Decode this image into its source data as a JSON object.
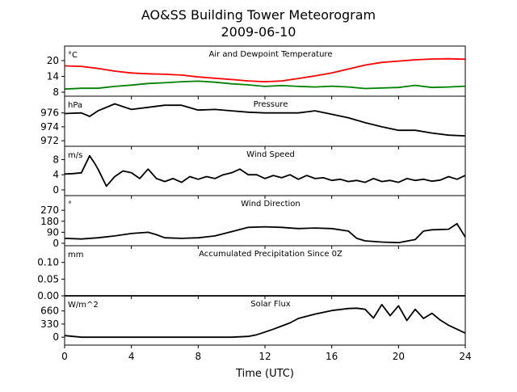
{
  "chart_data": {
    "type": "line",
    "title": "AO&SS Building Tower Meteorogram",
    "subtitle": "2009-06-10",
    "xlabel": "Time (UTC)",
    "xlim": [
      0,
      24
    ],
    "xticks": [
      0,
      4,
      8,
      12,
      16,
      20,
      24
    ],
    "grid": false,
    "panels": [
      {
        "title": "Air and Dewpoint Temperature",
        "unit": "°C",
        "ylim": [
          6.5,
          25.5
        ],
        "yticks": [
          8,
          14,
          20
        ],
        "series": [
          {
            "color": "#ff0000",
            "points": [
              [
                0,
                18
              ],
              [
                1,
                17.8
              ],
              [
                2,
                17
              ],
              [
                3,
                16
              ],
              [
                4,
                15.3
              ],
              [
                5,
                15
              ],
              [
                6,
                14.8
              ],
              [
                7,
                14.5
              ],
              [
                8,
                13.8
              ],
              [
                9,
                13.3
              ],
              [
                10,
                12.8
              ],
              [
                11,
                12.3
              ],
              [
                12,
                12
              ],
              [
                13,
                12.3
              ],
              [
                14,
                13.2
              ],
              [
                15,
                14.2
              ],
              [
                16,
                15.3
              ],
              [
                17,
                16.8
              ],
              [
                18,
                18.3
              ],
              [
                19,
                19.3
              ],
              [
                20,
                19.8
              ],
              [
                21,
                20.3
              ],
              [
                22,
                20.6
              ],
              [
                23,
                20.7
              ],
              [
                24,
                20.5
              ]
            ]
          },
          {
            "color": "#008000",
            "points": [
              [
                0,
                9.2
              ],
              [
                1,
                9.5
              ],
              [
                2,
                9.5
              ],
              [
                3,
                10.2
              ],
              [
                4,
                10.7
              ],
              [
                5,
                11.3
              ],
              [
                6,
                11.6
              ],
              [
                7,
                12
              ],
              [
                8,
                12.2
              ],
              [
                9,
                11.8
              ],
              [
                10,
                11.2
              ],
              [
                11,
                10.8
              ],
              [
                12,
                10.2
              ],
              [
                13,
                10.5
              ],
              [
                14,
                10.2
              ],
              [
                15,
                10
              ],
              [
                16,
                10.3
              ],
              [
                17,
                10
              ],
              [
                18,
                9.4
              ],
              [
                19,
                9.6
              ],
              [
                20,
                9.8
              ],
              [
                21,
                10.6
              ],
              [
                22,
                9.8
              ],
              [
                23,
                10
              ],
              [
                24,
                10.3
              ]
            ]
          }
        ]
      },
      {
        "title": "Pressure",
        "unit": "hPa",
        "ylim": [
          971.2,
          978.4
        ],
        "yticks": [
          972,
          974,
          976
        ],
        "series": [
          {
            "color": "#000000",
            "points": [
              [
                0,
                975.9
              ],
              [
                1,
                976
              ],
              [
                1.5,
                975.5
              ],
              [
                2,
                976.3
              ],
              [
                3,
                977.3
              ],
              [
                4,
                976.5
              ],
              [
                5,
                976.8
              ],
              [
                6,
                977.1
              ],
              [
                7,
                977.1
              ],
              [
                8,
                976.4
              ],
              [
                9,
                976.5
              ],
              [
                10,
                976.3
              ],
              [
                11,
                976.1
              ],
              [
                12,
                976
              ],
              [
                13,
                976
              ],
              [
                14,
                976
              ],
              [
                15,
                976.3
              ],
              [
                16,
                975.8
              ],
              [
                17,
                975.3
              ],
              [
                18,
                974.6
              ],
              [
                19,
                974
              ],
              [
                20,
                973.5
              ],
              [
                21,
                973.5
              ],
              [
                22,
                973.1
              ],
              [
                23,
                972.8
              ],
              [
                24,
                972.7
              ]
            ]
          }
        ]
      },
      {
        "title": "Wind Speed",
        "unit": "m/s",
        "ylim": [
          -1.5,
          11.5
        ],
        "yticks": [
          0,
          4,
          8
        ],
        "series": [
          {
            "color": "#000000",
            "points": [
              [
                0,
                4.2
              ],
              [
                0.5,
                4.3
              ],
              [
                1,
                4.5
              ],
              [
                1.5,
                9
              ],
              [
                1.8,
                7
              ],
              [
                2,
                5.5
              ],
              [
                2.5,
                1
              ],
              [
                3,
                3.5
              ],
              [
                3.5,
                5
              ],
              [
                4,
                4.5
              ],
              [
                4.5,
                3
              ],
              [
                5,
                5.5
              ],
              [
                5.5,
                3
              ],
              [
                6,
                2.2
              ],
              [
                6.5,
                3
              ],
              [
                7,
                2
              ],
              [
                7.5,
                3.5
              ],
              [
                8,
                2.8
              ],
              [
                8.5,
                3.5
              ],
              [
                9,
                3
              ],
              [
                9.5,
                4
              ],
              [
                10,
                4.5
              ],
              [
                10.5,
                5.5
              ],
              [
                11,
                4
              ],
              [
                11.5,
                4
              ],
              [
                12,
                3
              ],
              [
                12.5,
                3.8
              ],
              [
                13,
                3.2
              ],
              [
                13.5,
                4
              ],
              [
                14,
                2.8
              ],
              [
                14.5,
                3.8
              ],
              [
                15,
                3
              ],
              [
                15.5,
                3.2
              ],
              [
                16,
                2.5
              ],
              [
                16.5,
                2.8
              ],
              [
                17,
                2.2
              ],
              [
                17.5,
                2.5
              ],
              [
                18,
                2
              ],
              [
                18.5,
                3
              ],
              [
                19,
                2.2
              ],
              [
                19.5,
                2.5
              ],
              [
                20,
                2
              ],
              [
                20.5,
                3
              ],
              [
                21,
                2.5
              ],
              [
                21.5,
                2.8
              ],
              [
                22,
                2.3
              ],
              [
                22.5,
                2.6
              ],
              [
                23,
                3.5
              ],
              [
                23.5,
                2.8
              ],
              [
                24,
                3.8
              ]
            ]
          }
        ]
      },
      {
        "title": "Wind Direction",
        "unit": "°",
        "ylim": [
          -20,
          390
        ],
        "yticks": [
          0,
          90,
          180,
          270
        ],
        "series": [
          {
            "color": "#000000",
            "points": [
              [
                0,
                40
              ],
              [
                1,
                35
              ],
              [
                2,
                45
              ],
              [
                3,
                60
              ],
              [
                4,
                80
              ],
              [
                5,
                90
              ],
              [
                5.5,
                70
              ],
              [
                6,
                45
              ],
              [
                7,
                40
              ],
              [
                8,
                45
              ],
              [
                9,
                60
              ],
              [
                10,
                95
              ],
              [
                11,
                130
              ],
              [
                12,
                135
              ],
              [
                13,
                130
              ],
              [
                14,
                120
              ],
              [
                15,
                125
              ],
              [
                16,
                120
              ],
              [
                17,
                100
              ],
              [
                17.5,
                40
              ],
              [
                18,
                20
              ],
              [
                19,
                10
              ],
              [
                20,
                5
              ],
              [
                21,
                30
              ],
              [
                21.5,
                100
              ],
              [
                22,
                110
              ],
              [
                23,
                115
              ],
              [
                23.5,
                160
              ],
              [
                24,
                50
              ]
            ]
          }
        ]
      },
      {
        "title": "Accumulated Precipitation Since 0Z",
        "unit": "mm",
        "ylim": [
          0,
          0.15
        ],
        "yticks": [
          0.0,
          0.05,
          0.1
        ],
        "ytick_labels": [
          "0.00",
          "0.05",
          "0.10"
        ],
        "series": [
          {
            "color": "#000000",
            "points": [
              [
                0,
                0
              ],
              [
                24,
                0
              ]
            ]
          }
        ]
      },
      {
        "title": "Solar Flux",
        "unit": "W/m^2",
        "ylim": [
          -200,
          1040
        ],
        "yticks": [
          0,
          330,
          660
        ],
        "series": [
          {
            "color": "#000000",
            "points": [
              [
                0,
                40
              ],
              [
                1,
                0
              ],
              [
                2,
                0
              ],
              [
                4,
                0
              ],
              [
                6,
                0
              ],
              [
                8,
                0
              ],
              [
                10,
                0
              ],
              [
                11,
                20
              ],
              [
                11.5,
                60
              ],
              [
                12,
                130
              ],
              [
                12.5,
                200
              ],
              [
                13,
                280
              ],
              [
                13.5,
                360
              ],
              [
                14,
                470
              ],
              [
                15,
                580
              ],
              [
                16,
                670
              ],
              [
                17,
                720
              ],
              [
                17.5,
                730
              ],
              [
                18,
                700
              ],
              [
                18.5,
                480
              ],
              [
                19,
                820
              ],
              [
                19.5,
                540
              ],
              [
                20,
                790
              ],
              [
                20.5,
                420
              ],
              [
                21,
                700
              ],
              [
                21.5,
                470
              ],
              [
                22,
                600
              ],
              [
                22.5,
                430
              ],
              [
                23,
                300
              ],
              [
                23.5,
                200
              ],
              [
                24,
                100
              ]
            ]
          }
        ]
      }
    ]
  }
}
